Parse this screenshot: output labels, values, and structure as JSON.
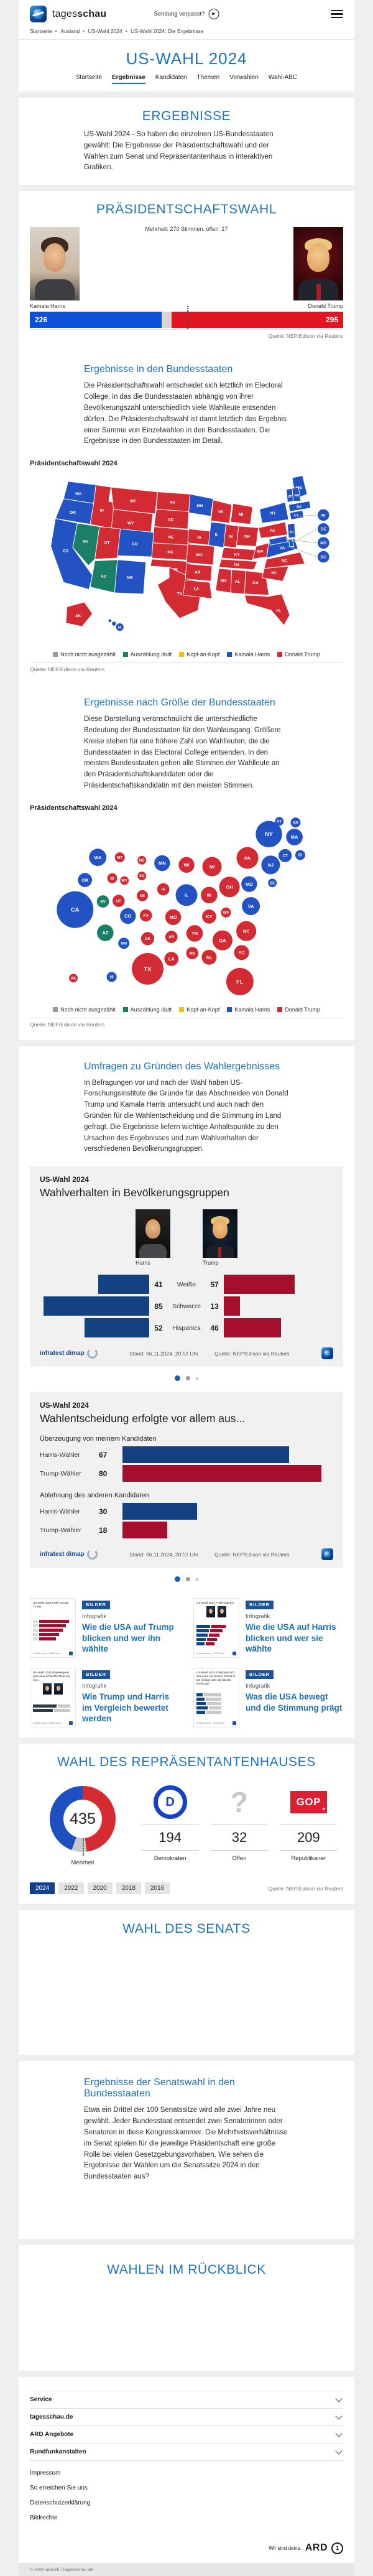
{
  "header": {
    "brand_light": "tages",
    "brand_bold": "schau",
    "sendung_link": "Sendung verpasst?"
  },
  "breadcrumb": [
    "Startseite",
    "Ausland",
    "US-Wahl 2024",
    "US-Wahl 2024: Die Ergebnisse"
  ],
  "page_title": "US-WAHL 2024",
  "tabs": [
    {
      "label": "Startseite",
      "active": false
    },
    {
      "label": "Ergebnisse",
      "active": true
    },
    {
      "label": "Kandidaten",
      "active": false
    },
    {
      "label": "Themen",
      "active": false
    },
    {
      "label": "Vorwahlen",
      "active": false
    },
    {
      "label": "Wahl-ABC",
      "active": false
    }
  ],
  "ergebnisse": {
    "title": "ERGEBNISSE",
    "intro": "US-Wahl 2024 - So haben die einzelnen US-Bundesstaaten gewählt: Die Ergebnisse der Präsidentschaftswahl und der Wahlen zum Senat und Repräsentantenhaus in interaktiven Grafiken."
  },
  "praesident": {
    "title": "PRÄSIDENTSCHAFTSWAHL",
    "majority_note": "Mehrheit: 270 Stimmen, offen: 17",
    "harris_name": "Kamala Harris",
    "trump_name": "Donald Trump",
    "source": "Quelle: NEP/Edison via Reuters"
  },
  "staaten": {
    "heading": "Ergebnisse in den Bundesstaaten",
    "text": "Die Präsidentschaftswahl entscheidet sich letztlich im Electoral College, in das die Bundesstaaten abhängig von ihrer Bevölkerungszahl unterschiedlich viele Wahlleute entsenden dürfen. Die Präsidentschaftswahl ist damit letztlich das Ergebnis einer Summe von Einzelwahlen in den Bundesstaaten. Die Ergebnisse in den Bundesstaaten im Detail.",
    "chart_label": "Präsidentschaftswahl 2024",
    "source": "Quelle: NEP/Edison via Reuters"
  },
  "groesse": {
    "heading": "Ergebnisse nach Größe der Bundesstaaten",
    "text": "Diese Darstellung veranschaulicht die unterschiedliche Bedeutung der Bundesstaaten für den Wahlausgang. Größere Kreise stehen für eine höhere Zahl von Wahlleuten, die die Bundesstaaten in das Electoral College entsenden. In den meisten Bundesstaaten gehen alle Stimmen der Wahlleute an den Präsidentschaftskandidaten oder die Präsidentschaftskandidatin mit den meisten Stimmen.",
    "chart_label": "Präsidentschaftswahl 2024",
    "source": "Quelle: NEP/Edison via Reuters"
  },
  "legend": [
    {
      "label": "Noch nicht ausgezählt",
      "color": "#9a9a9a"
    },
    {
      "label": "Auszählung läuft",
      "color": "#1a7f66"
    },
    {
      "label": "Kopf-an-Kopf",
      "color": "#e6c619"
    },
    {
      "label": "Kamala Harris",
      "color": "#2353c2"
    },
    {
      "label": "Donald Trump",
      "color": "#d32b33"
    }
  ],
  "umfragen": {
    "heading": "Umfragen zu Gründen des Wahlergebnisses",
    "text": "In Befragungen vor und nach der Wahl haben US-Forschungsinstitute die Gründe für das Abschneiden von Donald Trump und Kamala Harris untersucht und auch nach den Gründen für die Wahlentscheidung und die Stimmung im Land gefragt. Die Ergebnisse liefern wichtige Anhaltspunkte zu den Ursachen des Ergebnisses und zum Wahlverhalten der verschiedenen Bevölkerungsgruppen."
  },
  "chart_card1": {
    "kicker": "US-Wahl 2024",
    "title": "Wahlverhalten in Bevölkerungsgruppen",
    "harris_label": "Harris",
    "trump_label": "Trump",
    "stand": "Stand:  06.11.2024, 20:52 Uhr",
    "source": "Quelle: NEP/Edison via Reuters",
    "institute": "infratest dimap"
  },
  "chart_card2": {
    "kicker": "US-Wahl 2024",
    "title": "Wahlentscheidung erfolgte vor allem aus...",
    "stand": "Stand:  06.11.2024, 20:52 Uhr",
    "source": "Quelle: NEP/Edison via Reuters",
    "institute": "infratest dimap"
  },
  "teasers": [
    {
      "badge": "BILDER",
      "kicker": "Infografik",
      "title": "Wie die USA auf Trump blicken und wer ihn wählte",
      "thumb_caption": "US-Wahl 2024 Profil Donald Trump",
      "thumb_type": "red-bars"
    },
    {
      "badge": "BILDER",
      "kicker": "Infografik",
      "title": "Wie die USA auf Harris blicken und wer sie wählte",
      "thumb_caption": "US-Wahl 2024 Profilvergleich",
      "thumb_type": "compare"
    },
    {
      "badge": "BILDER",
      "kicker": "Infografik",
      "title": "Wie Trump und Harris im Vergleich bewertet werden",
      "thumb_caption": "US-Wahl 2024 Überwiegend gute oder schlechte Meinung von...",
      "thumb_type": "opinion"
    },
    {
      "badge": "BILDER",
      "kicker": "Infografik",
      "title": "Was die USA bewegt und die Stimmung prägt",
      "thumb_caption": "US-Wahl 2024 Entwickelt sich das Land auf diesem Gebiet in die richtige oder die falsche Richtung?",
      "thumb_type": "mood"
    }
  ],
  "house": {
    "title": "WAHL DES REPRÄSENTANTENHAUSES",
    "total": 435,
    "center_label": "Mehrheit",
    "parties": [
      {
        "name": "Demokraten",
        "seats": 194,
        "logo": "dem"
      },
      {
        "name": "Offen",
        "seats": 32,
        "logo": "open"
      },
      {
        "name": "Republikaner",
        "seats": 209,
        "logo": "gop"
      }
    ],
    "years": [
      "2024",
      "2022",
      "2020",
      "2018",
      "2016"
    ],
    "active_year": "2024",
    "source": "Quelle: NEP/Edison via Reuters"
  },
  "senat": {
    "title": "WAHL DES SENATS"
  },
  "senatswahl": {
    "heading": "Ergebnisse der Senatswahl in den Bundesstaaten",
    "text": "Etwa ein Drittel der 100 Senatssitze wird alle zwei Jahre neu gewählt. Jeder Bundesstaat entsendet zwei Senatorinnen oder Senatoren in diese Kongresskammer. Die Mehrheitsverhältnisse im Senat spielen für die jeweilige Präsidentschaft eine große Rolle bei vielen Gesetzgebungsvorhaben. Wie sehen die Ergebnisse der Wahlen um die Senatssitze 2024 in den Bundesstaaten aus?"
  },
  "rueckblick": {
    "title": "WAHLEN IM RÜCKBLICK"
  },
  "footer": {
    "accordions": [
      "Service",
      "tagesschau.de",
      "ARD Angebote",
      "Rundfunkanstalten"
    ],
    "links": [
      "Impressum",
      "So erreichen Sie uns",
      "Datenschutzerklärung",
      "Bildrechte"
    ],
    "tagline": "Wir sind deins.",
    "brand": "ARD",
    "copyright": "© ARD-aktuell / tagesschau.de"
  },
  "chart_data": [
    {
      "type": "bar",
      "title": "Präsidentschaftswahl Electoral College",
      "series": [
        {
          "name": "Kamala Harris",
          "value": 226,
          "color": "#0d4fd6"
        },
        {
          "name": "offen",
          "value": 17,
          "color": "#d6d6d6"
        },
        {
          "name": "Donald Trump",
          "value": 295,
          "color": "#e01623"
        }
      ],
      "total": 538,
      "majority": 270
    },
    {
      "type": "heatmap",
      "title": "Präsidentschaftswahl 2024 nach Bundesstaaten",
      "winner_colors": {
        "harris": "#2353c2",
        "trump": "#d32b33",
        "counting": "#1a7f66",
        "open": "#9a9a9a",
        "tossup": "#e6c619"
      },
      "states": [
        {
          "id": "WA",
          "ev": 12,
          "winner": "harris"
        },
        {
          "id": "OR",
          "ev": 8,
          "winner": "harris"
        },
        {
          "id": "CA",
          "ev": 54,
          "winner": "harris"
        },
        {
          "id": "NV",
          "ev": 6,
          "winner": "counting"
        },
        {
          "id": "ID",
          "ev": 4,
          "winner": "trump"
        },
        {
          "id": "MT",
          "ev": 4,
          "winner": "trump"
        },
        {
          "id": "WY",
          "ev": 3,
          "winner": "trump"
        },
        {
          "id": "UT",
          "ev": 6,
          "winner": "trump"
        },
        {
          "id": "CO",
          "ev": 10,
          "winner": "harris"
        },
        {
          "id": "AZ",
          "ev": 11,
          "winner": "counting"
        },
        {
          "id": "NM",
          "ev": 5,
          "winner": "harris"
        },
        {
          "id": "ND",
          "ev": 3,
          "winner": "trump"
        },
        {
          "id": "SD",
          "ev": 3,
          "winner": "trump"
        },
        {
          "id": "NE",
          "ev": 5,
          "winner": "trump"
        },
        {
          "id": "KS",
          "ev": 6,
          "winner": "trump"
        },
        {
          "id": "OK",
          "ev": 7,
          "winner": "trump"
        },
        {
          "id": "TX",
          "ev": 40,
          "winner": "trump"
        },
        {
          "id": "MN",
          "ev": 10,
          "winner": "harris"
        },
        {
          "id": "IA",
          "ev": 6,
          "winner": "trump"
        },
        {
          "id": "MO",
          "ev": 10,
          "winner": "trump"
        },
        {
          "id": "AR",
          "ev": 6,
          "winner": "trump"
        },
        {
          "id": "LA",
          "ev": 8,
          "winner": "trump"
        },
        {
          "id": "WI",
          "ev": 10,
          "winner": "trump"
        },
        {
          "id": "IL",
          "ev": 19,
          "winner": "harris"
        },
        {
          "id": "MI",
          "ev": 15,
          "winner": "trump"
        },
        {
          "id": "IN",
          "ev": 11,
          "winner": "trump"
        },
        {
          "id": "OH",
          "ev": 17,
          "winner": "trump"
        },
        {
          "id": "KY",
          "ev": 8,
          "winner": "trump"
        },
        {
          "id": "TN",
          "ev": 11,
          "winner": "trump"
        },
        {
          "id": "MS",
          "ev": 6,
          "winner": "trump"
        },
        {
          "id": "AL",
          "ev": 9,
          "winner": "trump"
        },
        {
          "id": "GA",
          "ev": 16,
          "winner": "trump"
        },
        {
          "id": "WV",
          "ev": 4,
          "winner": "trump"
        },
        {
          "id": "VA",
          "ev": 13,
          "winner": "harris"
        },
        {
          "id": "NC",
          "ev": 16,
          "winner": "trump"
        },
        {
          "id": "SC",
          "ev": 9,
          "winner": "trump"
        },
        {
          "id": "FL",
          "ev": 30,
          "winner": "trump"
        },
        {
          "id": "PA",
          "ev": 19,
          "winner": "trump"
        },
        {
          "id": "NY",
          "ev": 28,
          "winner": "harris"
        },
        {
          "id": "ME",
          "ev": 4,
          "winner": "harris"
        },
        {
          "id": "VT",
          "ev": 3,
          "winner": "harris"
        },
        {
          "id": "NH",
          "ev": 4,
          "winner": "harris"
        },
        {
          "id": "MA",
          "ev": 11,
          "winner": "harris"
        },
        {
          "id": "CT",
          "ev": 7,
          "winner": "harris"
        },
        {
          "id": "RI",
          "ev": 4,
          "winner": "harris"
        },
        {
          "id": "NJ",
          "ev": 14,
          "winner": "harris"
        },
        {
          "id": "MD",
          "ev": 10,
          "winner": "harris"
        },
        {
          "id": "DE",
          "ev": 3,
          "winner": "harris"
        },
        {
          "id": "DC",
          "ev": 3,
          "winner": "harris"
        },
        {
          "id": "AK",
          "ev": 3,
          "winner": "trump"
        },
        {
          "id": "HI",
          "ev": 4,
          "winner": "harris"
        }
      ]
    },
    {
      "type": "bar",
      "title": "Wahlverhalten in Bevölkerungsgruppen",
      "categories": [
        "Weiße",
        "Schwarze",
        "Hispanics"
      ],
      "series": [
        {
          "name": "Harris",
          "values": [
            41,
            85,
            52
          ],
          "color": "#14417f"
        },
        {
          "name": "Trump",
          "values": [
            57,
            13,
            46
          ],
          "color": "#a50f2d"
        }
      ]
    },
    {
      "type": "bar",
      "title": "Wahlentscheidung erfolgte vor allem aus...",
      "groups": [
        {
          "label": "Überzeugung von meinem Kandidaten",
          "rows": [
            {
              "name": "Harris-Wähler",
              "value": 67,
              "color": "#14417f"
            },
            {
              "name": "Trump-Wähler",
              "value": 80,
              "color": "#a50f2d"
            }
          ]
        },
        {
          "label": "Ablehnung des anderen Kandidaten",
          "rows": [
            {
              "name": "Harris-Wähler",
              "value": 30,
              "color": "#14417f"
            },
            {
              "name": "Trump-Wähler",
              "value": 18,
              "color": "#a50f2d"
            }
          ]
        }
      ]
    },
    {
      "type": "pie",
      "title": "Wahl des Repräsentantenhauses",
      "slices": [
        {
          "name": "Republikaner",
          "value": 209,
          "color": "#d62b31"
        },
        {
          "name": "Offen",
          "value": 32,
          "color": "#c9c9c9"
        },
        {
          "name": "Demokraten",
          "value": 194,
          "color": "#1e50c0"
        }
      ],
      "total": 435
    }
  ]
}
